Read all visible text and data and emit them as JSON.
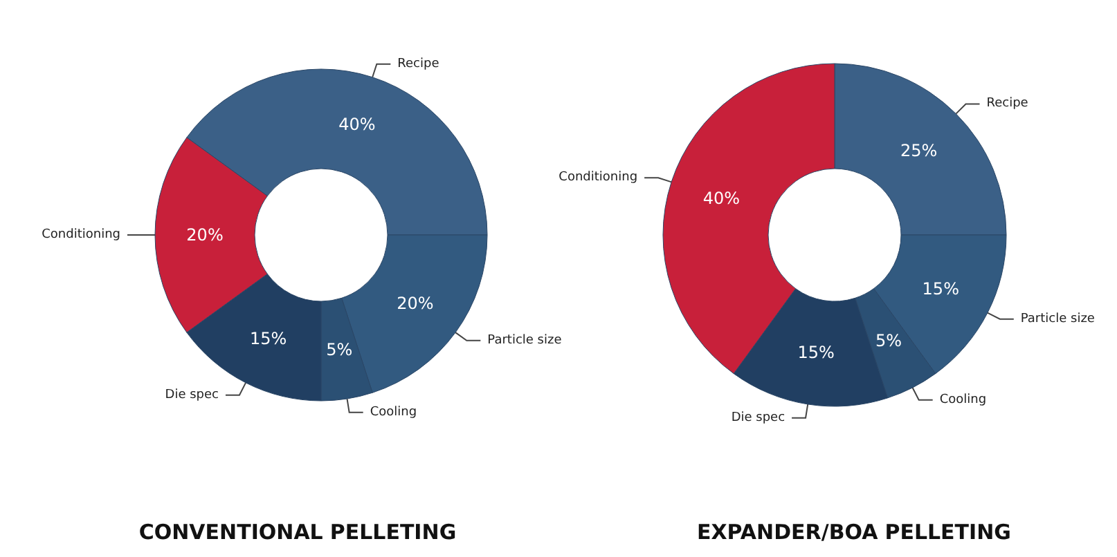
{
  "chart_data": [
    {
      "type": "donut",
      "title": "CONVENTIONAL PELLETING",
      "categories": [
        "Recipe",
        "Particle size",
        "Cooling",
        "Die spec",
        "Conditioning"
      ],
      "values": [
        40,
        20,
        5,
        15,
        20
      ],
      "value_labels": [
        "40%",
        "20%",
        "5%",
        "15%",
        "20%"
      ],
      "colors": [
        "#3b6087",
        "#325a80",
        "#2b5074",
        "#213f62",
        "#c8203a"
      ],
      "legend": false
    },
    {
      "type": "donut",
      "title": "EXPANDER/BOA PELLETING",
      "categories": [
        "Recipe",
        "Particle size",
        "Cooling",
        "Die spec",
        "Conditioning"
      ],
      "values": [
        25,
        15,
        5,
        15,
        40
      ],
      "value_labels": [
        "25%",
        "15%",
        "5%",
        "15%",
        "40%"
      ],
      "colors": [
        "#3b6087",
        "#325a80",
        "#2b5074",
        "#213f62",
        "#c8203a"
      ],
      "legend": false
    }
  ]
}
